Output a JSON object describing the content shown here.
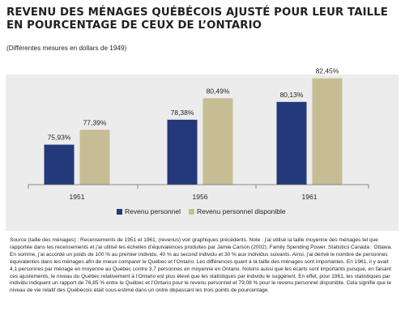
{
  "title": "REVENU DES MÉNAGES QUÉBÉCOIS AJUSTÉ POUR LEUR TAILLE EN POURCENTAGE DE CEUX DE L’ONTARIO",
  "subtitle": "(Différentes mesures en dollars de 1949)",
  "source_text": "Source (taille des ménages) : Recensements de 1951 et 1961; (revenus) voir graphiques précédents. Note : j’ai utilisé la taille moyenne des ménages tel que rapportée dans les recensements et j’ai utilisé les échelles d’équivalences produites par Jamie Carson (2002), Family Spending Power. Statistics Canada : Ottawa. En somme, j’ai accordé un poids de 100 % au premier individu, 40 % au second individu et 30 % aux individus suivants. Ainsi, j’ai dérivé le nombre de personnes équivalentes dans les ménages afin de mieux comparer le Québec et l’Ontario. Les différences quant à la taille des ménages sont importantes. En 1961, il y avait 4,1 personnes par ménage en moyenne au Québec contre 3,7 personnes en moyenne en Ontario. Notons aussi que les écarts sont importants puisque, en faisant ces ajustements, le niveau du Québec relativement à l’Ontario est plus élevé que les statistiques par individu le suggèrent. En effet, pour 1961, les statistiques par individu indiquent un rapport de 76,85 % entre le Québec et l’Ontario pour le revenu personnel et 79,08 % pour le revenu personnel disponible. Cela signifie que le niveau de vie relatif des Québécois était sous-estimé dans un ordre dépassant les trois points de pourcentage.",
  "colors": {
    "series1": "#23397a",
    "series2": "#c7bd95",
    "chart_bg": "#ececec"
  },
  "chart_data": {
    "type": "bar",
    "categories": [
      "1951",
      "1956",
      "1961"
    ],
    "series": [
      {
        "name": "Revenu personnel",
        "values": [
          75.93,
          78.38,
          80.13
        ],
        "labels": [
          "75,93%",
          "78,38%",
          "80,13%"
        ]
      },
      {
        "name": "Revenu personnel disponible",
        "values": [
          77.39,
          80.49,
          82.45
        ],
        "labels": [
          "77,39%",
          "80,49%",
          "82,45%"
        ]
      }
    ],
    "ylim": [
      72,
      83.3
    ],
    "grid": false,
    "legend_position": "bottom"
  }
}
